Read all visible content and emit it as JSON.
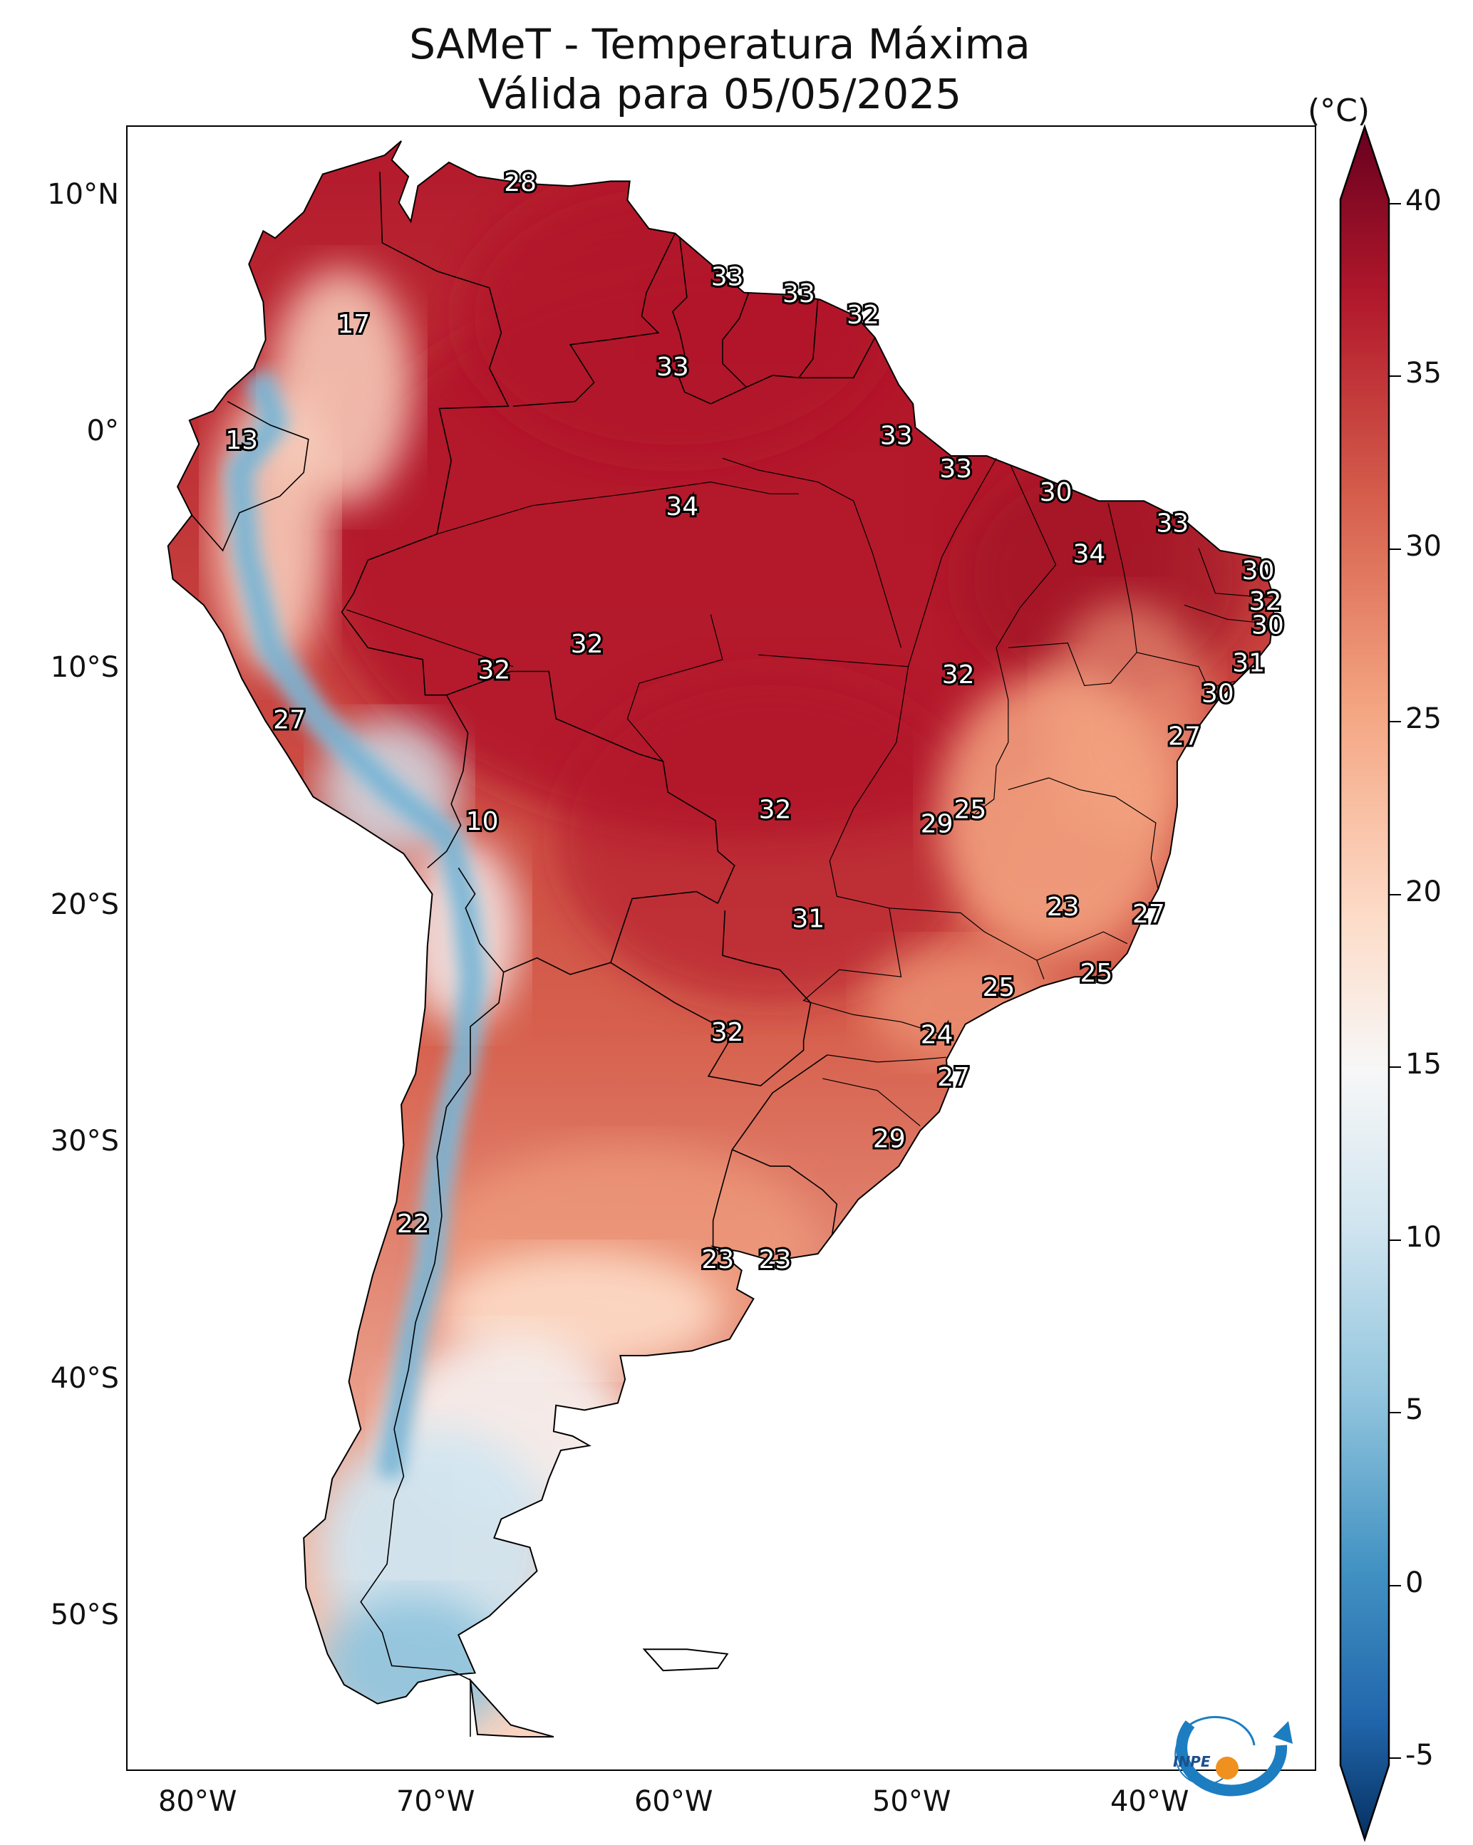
{
  "title": {
    "line1": "SAMeT - Temperatura Máxima",
    "line2": "Válida para 05/05/2025"
  },
  "colorbar": {
    "unit": "(°C)",
    "ticks": [
      "40",
      "35",
      "30",
      "25",
      "20",
      "15",
      "10",
      "5",
      "0",
      "-5"
    ],
    "colors": {
      "max": "#67001f",
      "hot": "#b2182b",
      "warm": "#d6604d",
      "mild": "#f4a582",
      "light": "#fddbc7",
      "neutral": "#f7f7f7",
      "cool": "#d1e5f0",
      "cold": "#92c5de",
      "colder": "#4393c3",
      "coldest": "#2166ac",
      "min": "#053061"
    }
  },
  "axes": {
    "lat_labels": [
      "10°N",
      "0°",
      "10°S",
      "20°S",
      "30°S",
      "40°S",
      "50°S"
    ],
    "lon_labels": [
      "80°W",
      "70°W",
      "60°W",
      "50°W",
      "40°W"
    ]
  },
  "map_labels": [
    {
      "text": "28",
      "lon": -66.5,
      "lat": 10.6
    },
    {
      "text": "33",
      "lon": -57.8,
      "lat": 6.6
    },
    {
      "text": "33",
      "lon": -54.8,
      "lat": 5.9
    },
    {
      "text": "32",
      "lon": -52.1,
      "lat": 5.0
    },
    {
      "text": "17",
      "lon": -73.5,
      "lat": 4.6
    },
    {
      "text": "33",
      "lon": -60.1,
      "lat": 2.8
    },
    {
      "text": "13",
      "lon": -78.2,
      "lat": -0.3
    },
    {
      "text": "33",
      "lon": -50.7,
      "lat": -0.1
    },
    {
      "text": "33",
      "lon": -48.2,
      "lat": -1.5
    },
    {
      "text": "30",
      "lon": -44.0,
      "lat": -2.5
    },
    {
      "text": "34",
      "lon": -59.7,
      "lat": -3.1
    },
    {
      "text": "33",
      "lon": -39.1,
      "lat": -3.8
    },
    {
      "text": "34",
      "lon": -42.6,
      "lat": -5.1
    },
    {
      "text": "30",
      "lon": -35.5,
      "lat": -5.8
    },
    {
      "text": "32",
      "lon": -35.2,
      "lat": -7.1
    },
    {
      "text": "30",
      "lon": -35.1,
      "lat": -8.1
    },
    {
      "text": "32",
      "lon": -63.7,
      "lat": -8.9
    },
    {
      "text": "32",
      "lon": -67.6,
      "lat": -10.0
    },
    {
      "text": "31",
      "lon": -35.9,
      "lat": -9.7
    },
    {
      "text": "32",
      "lon": -48.1,
      "lat": -10.2
    },
    {
      "text": "30",
      "lon": -37.2,
      "lat": -11.0
    },
    {
      "text": "27",
      "lon": -76.2,
      "lat": -12.1
    },
    {
      "text": "27",
      "lon": -38.6,
      "lat": -12.8
    },
    {
      "text": "32",
      "lon": -55.8,
      "lat": -15.9
    },
    {
      "text": "25",
      "lon": -47.6,
      "lat": -15.9
    },
    {
      "text": "10",
      "lon": -68.1,
      "lat": -16.4
    },
    {
      "text": "29",
      "lon": -49.0,
      "lat": -16.5
    },
    {
      "text": "23",
      "lon": -43.7,
      "lat": -20.0
    },
    {
      "text": "27",
      "lon": -40.1,
      "lat": -20.3
    },
    {
      "text": "31",
      "lon": -54.4,
      "lat": -20.5
    },
    {
      "text": "25",
      "lon": -42.3,
      "lat": -22.8
    },
    {
      "text": "25",
      "lon": -46.4,
      "lat": -23.4
    },
    {
      "text": "32",
      "lon": -57.8,
      "lat": -25.3
    },
    {
      "text": "24",
      "lon": -49.0,
      "lat": -25.4
    },
    {
      "text": "27",
      "lon": -48.3,
      "lat": -27.2
    },
    {
      "text": "29",
      "lon": -51.0,
      "lat": -29.8
    },
    {
      "text": "22",
      "lon": -71.0,
      "lat": -33.4
    },
    {
      "text": "23",
      "lon": -58.2,
      "lat": -34.9
    },
    {
      "text": "23",
      "lon": -55.8,
      "lat": -34.9
    }
  ],
  "logo": {
    "text": "INPE"
  }
}
